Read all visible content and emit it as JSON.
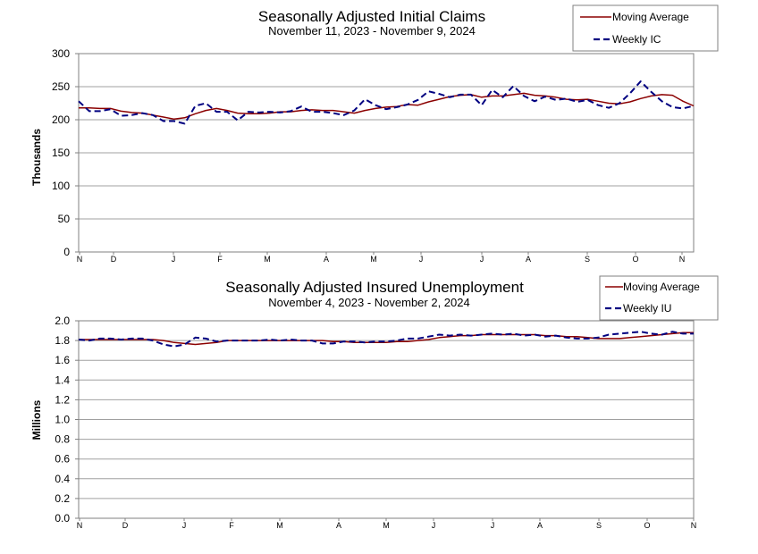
{
  "chart_data": [
    {
      "type": "line",
      "title": "Seasonally Adjusted Initial Claims",
      "subtitle": "November 11, 2023 - November 9, 2024",
      "ylabel": "Thousands",
      "xlabel": "",
      "ylim": [
        0,
        300
      ],
      "yticks": [
        "0",
        "50",
        "100",
        "150",
        "200",
        "250",
        "300"
      ],
      "xtick_labels": [
        "N",
        "D",
        "J",
        "F",
        "M",
        "A",
        "M",
        "J",
        "J",
        "A",
        "S",
        "O",
        "N"
      ],
      "grid": true,
      "legend_position": "top-right",
      "series": [
        {
          "name": "Moving Average",
          "color": "#8b0000",
          "style": "solid",
          "values": [
            218,
            218,
            217,
            217,
            213,
            211,
            210,
            207,
            204,
            201,
            203,
            209,
            214,
            217,
            214,
            210,
            209,
            209,
            210,
            212,
            212,
            214,
            215,
            214,
            214,
            212,
            210,
            214,
            217,
            219,
            220,
            223,
            222,
            227,
            231,
            235,
            237,
            238,
            234,
            236,
            236,
            238,
            240,
            237,
            236,
            234,
            231,
            230,
            231,
            228,
            225,
            224,
            227,
            232,
            236,
            238,
            237,
            228,
            221
          ]
        },
        {
          "name": "Weekly IC",
          "color": "#000080",
          "style": "dashed",
          "values": [
            228,
            213,
            213,
            216,
            206,
            207,
            210,
            207,
            198,
            198,
            194,
            221,
            225,
            212,
            212,
            199,
            212,
            211,
            212,
            211,
            213,
            220,
            212,
            212,
            210,
            207,
            214,
            231,
            222,
            216,
            219,
            223,
            230,
            243,
            239,
            234,
            238,
            238,
            222,
            245,
            234,
            251,
            236,
            228,
            235,
            230,
            232,
            227,
            230,
            222,
            218,
            225,
            240,
            258,
            242,
            228,
            219,
            217,
            221
          ]
        }
      ]
    },
    {
      "type": "line",
      "title": "Seasonally Adjusted Insured Unemployment",
      "subtitle": "November 4, 2023 - November 2, 2024",
      "ylabel": "Millions",
      "xlabel": "",
      "ylim": [
        0.0,
        2.0
      ],
      "yticks": [
        "0.0",
        "0.2",
        "0.4",
        "0.6",
        "0.8",
        "1.0",
        "1.2",
        "1.4",
        "1.6",
        "1.8",
        "2.0"
      ],
      "xtick_labels": [
        "N",
        "D",
        "J",
        "F",
        "M",
        "A",
        "M",
        "J",
        "J",
        "A",
        "S",
        "O",
        "N"
      ],
      "grid": true,
      "legend_position": "top-right",
      "series": [
        {
          "name": "Moving Average",
          "color": "#8b0000",
          "style": "solid",
          "values": [
            1.81,
            1.81,
            1.81,
            1.81,
            1.81,
            1.81,
            1.81,
            1.81,
            1.8,
            1.78,
            1.77,
            1.76,
            1.77,
            1.78,
            1.8,
            1.8,
            1.8,
            1.8,
            1.8,
            1.8,
            1.8,
            1.8,
            1.8,
            1.8,
            1.79,
            1.79,
            1.78,
            1.78,
            1.78,
            1.78,
            1.79,
            1.79,
            1.8,
            1.81,
            1.83,
            1.84,
            1.85,
            1.85,
            1.86,
            1.86,
            1.86,
            1.86,
            1.86,
            1.86,
            1.85,
            1.85,
            1.84,
            1.84,
            1.83,
            1.82,
            1.82,
            1.82,
            1.83,
            1.84,
            1.85,
            1.86,
            1.87,
            1.88,
            1.88
          ]
        },
        {
          "name": "Weekly IU",
          "color": "#000080",
          "style": "dashed",
          "values": [
            1.81,
            1.8,
            1.82,
            1.82,
            1.81,
            1.82,
            1.82,
            1.8,
            1.76,
            1.74,
            1.76,
            1.83,
            1.82,
            1.79,
            1.8,
            1.8,
            1.8,
            1.8,
            1.81,
            1.8,
            1.81,
            1.8,
            1.8,
            1.77,
            1.77,
            1.79,
            1.79,
            1.78,
            1.79,
            1.79,
            1.8,
            1.82,
            1.82,
            1.84,
            1.86,
            1.85,
            1.86,
            1.85,
            1.86,
            1.87,
            1.86,
            1.87,
            1.85,
            1.86,
            1.84,
            1.85,
            1.83,
            1.82,
            1.82,
            1.83,
            1.86,
            1.87,
            1.88,
            1.89,
            1.87,
            1.86,
            1.89,
            1.87,
            1.87
          ]
        }
      ]
    }
  ]
}
